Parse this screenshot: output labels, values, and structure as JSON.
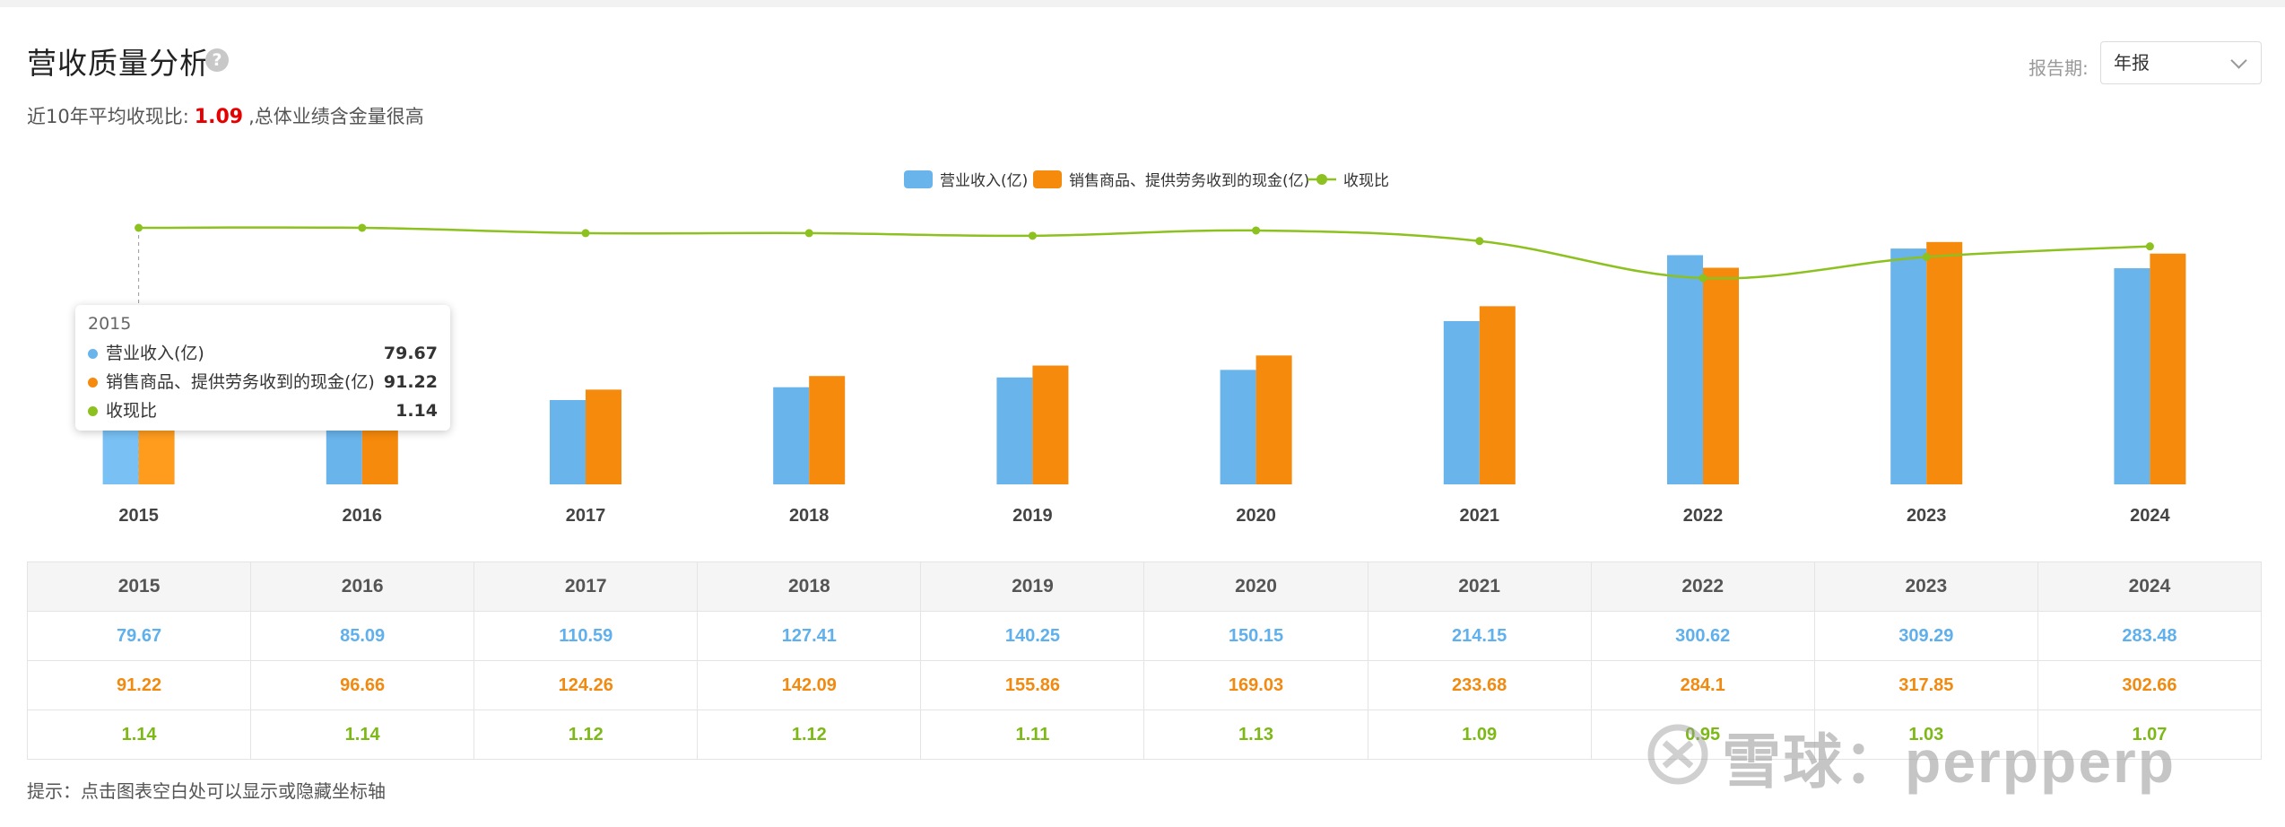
{
  "header": {
    "title": "营收质量分析",
    "help_icon": "question-icon",
    "summary_prefix": "近10年平均收现比:",
    "summary_value": "1.09",
    "summary_suffix": ",总体业绩含金量很高"
  },
  "period": {
    "label": "报告期:",
    "selected": "年报"
  },
  "tooltip": {
    "year": "2015",
    "rows": [
      {
        "name": "营业收入(亿)",
        "value": "79.67"
      },
      {
        "name": "销售商品、提供劳务收到的现金(亿)",
        "value": "91.22"
      },
      {
        "name": "收现比",
        "value": "1.14"
      }
    ]
  },
  "colors": {
    "revenue": "#6ab4ec",
    "cash": "#f58a0c",
    "ratio": "#8cc11f"
  },
  "chart_data": {
    "type": "bar",
    "categories": [
      "2015",
      "2016",
      "2017",
      "2018",
      "2019",
      "2020",
      "2021",
      "2022",
      "2023",
      "2024"
    ],
    "series": [
      {
        "name": "营业收入(亿)",
        "type": "bar",
        "values": [
          79.67,
          85.09,
          110.59,
          127.41,
          140.25,
          150.15,
          214.15,
          300.62,
          309.29,
          283.48
        ]
      },
      {
        "name": "销售商品、提供劳务收到的现金(亿)",
        "type": "bar",
        "values": [
          91.22,
          96.66,
          124.26,
          142.09,
          155.86,
          169.03,
          233.68,
          284.1,
          317.85,
          302.66
        ]
      },
      {
        "name": "收现比",
        "type": "line",
        "values": [
          1.14,
          1.14,
          1.12,
          1.12,
          1.11,
          1.13,
          1.09,
          0.95,
          1.03,
          1.07
        ]
      }
    ],
    "legend_position": "top-center",
    "grid": false,
    "axes_visible": false
  },
  "table": {
    "years": [
      "2015",
      "2016",
      "2017",
      "2018",
      "2019",
      "2020",
      "2021",
      "2022",
      "2023",
      "2024"
    ],
    "revenue": [
      "79.67",
      "85.09",
      "110.59",
      "127.41",
      "140.25",
      "150.15",
      "214.15",
      "300.62",
      "309.29",
      "283.48"
    ],
    "cash": [
      "91.22",
      "96.66",
      "124.26",
      "142.09",
      "155.86",
      "169.03",
      "233.68",
      "284.1",
      "317.85",
      "302.66"
    ],
    "ratio": [
      "1.14",
      "1.14",
      "1.12",
      "1.12",
      "1.11",
      "1.13",
      "1.09",
      "0.95",
      "1.03",
      "1.07"
    ]
  },
  "hint": "提示：点击图表空白处可以显示或隐藏坐标轴",
  "watermark": "雪球：perpperp"
}
